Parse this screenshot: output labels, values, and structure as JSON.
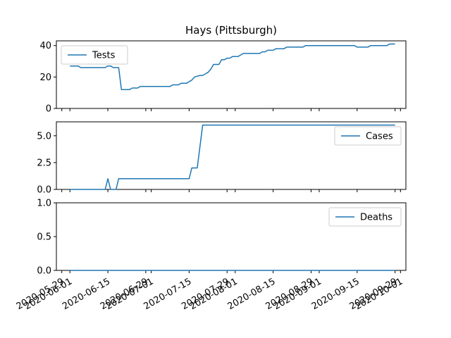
{
  "chart_data": {
    "type": "line",
    "title": "Hays (Pittsburgh)",
    "line_color": "#1f77b4",
    "x_ticks": [
      "2020-05-29",
      "2020-06-01",
      "2020-06-15",
      "2020-06-29",
      "2020-07-01",
      "2020-07-15",
      "2020-07-29",
      "2020-08-01",
      "2020-08-15",
      "2020-08-29",
      "2020-09-01",
      "2020-09-15",
      "2020-09-29",
      "2020-10-01"
    ],
    "x_range": [
      "2020-05-27",
      "2020-10-03"
    ],
    "panels": [
      {
        "series_name": "Tests",
        "legend_position": "top-left",
        "ylim": [
          0,
          43
        ],
        "y_ticks": [
          0,
          20,
          40
        ],
        "y_tick_labels": [
          "0",
          "20",
          "40"
        ],
        "points": [
          [
            "2020-06-01",
            27
          ],
          [
            "2020-06-04",
            27
          ],
          [
            "2020-06-05",
            26
          ],
          [
            "2020-06-14",
            26
          ],
          [
            "2020-06-15",
            27
          ],
          [
            "2020-06-16",
            27
          ],
          [
            "2020-06-17",
            26
          ],
          [
            "2020-06-19",
            26
          ],
          [
            "2020-06-20",
            12
          ],
          [
            "2020-06-23",
            12
          ],
          [
            "2020-06-24",
            13
          ],
          [
            "2020-06-26",
            13
          ],
          [
            "2020-06-27",
            14
          ],
          [
            "2020-07-08",
            14
          ],
          [
            "2020-07-09",
            15
          ],
          [
            "2020-07-11",
            15
          ],
          [
            "2020-07-12",
            16
          ],
          [
            "2020-07-14",
            16
          ],
          [
            "2020-07-15",
            17
          ],
          [
            "2020-07-16",
            18
          ],
          [
            "2020-07-17",
            20
          ],
          [
            "2020-07-19",
            21
          ],
          [
            "2020-07-20",
            21
          ],
          [
            "2020-07-21",
            22
          ],
          [
            "2020-07-22",
            23
          ],
          [
            "2020-07-23",
            25
          ],
          [
            "2020-07-24",
            28
          ],
          [
            "2020-07-26",
            28
          ],
          [
            "2020-07-27",
            31
          ],
          [
            "2020-07-28",
            31
          ],
          [
            "2020-07-29",
            32
          ],
          [
            "2020-07-30",
            32
          ],
          [
            "2020-07-31",
            33
          ],
          [
            "2020-08-02",
            33
          ],
          [
            "2020-08-03",
            34
          ],
          [
            "2020-08-04",
            35
          ],
          [
            "2020-08-10",
            35
          ],
          [
            "2020-08-11",
            36
          ],
          [
            "2020-08-12",
            36
          ],
          [
            "2020-08-13",
            37
          ],
          [
            "2020-08-15",
            37
          ],
          [
            "2020-08-16",
            38
          ],
          [
            "2020-08-19",
            38
          ],
          [
            "2020-08-20",
            39
          ],
          [
            "2020-08-26",
            39
          ],
          [
            "2020-08-27",
            40
          ],
          [
            "2020-09-14",
            40
          ],
          [
            "2020-09-15",
            39
          ],
          [
            "2020-09-19",
            39
          ],
          [
            "2020-09-20",
            40
          ],
          [
            "2020-09-26",
            40
          ],
          [
            "2020-09-27",
            41
          ],
          [
            "2020-09-29",
            41
          ]
        ]
      },
      {
        "series_name": "Cases",
        "legend_position": "top-right",
        "ylim": [
          0,
          6.3
        ],
        "y_ticks": [
          0,
          2.5,
          5
        ],
        "y_tick_labels": [
          "0.0",
          "2.5",
          "5.0"
        ],
        "points": [
          [
            "2020-06-01",
            0
          ],
          [
            "2020-06-14",
            0
          ],
          [
            "2020-06-15",
            1
          ],
          [
            "2020-06-16",
            0
          ],
          [
            "2020-06-18",
            0
          ],
          [
            "2020-06-19",
            1
          ],
          [
            "2020-07-15",
            1
          ],
          [
            "2020-07-16",
            2
          ],
          [
            "2020-07-18",
            2
          ],
          [
            "2020-07-20",
            6
          ],
          [
            "2020-09-29",
            6
          ]
        ]
      },
      {
        "series_name": "Deaths",
        "legend_position": "top-right",
        "ylim": [
          0,
          1
        ],
        "y_ticks": [
          0,
          0.5,
          1
        ],
        "y_tick_labels": [
          "0.0",
          "0.5",
          "1.0"
        ],
        "points": [
          [
            "2020-06-01",
            0
          ],
          [
            "2020-09-29",
            0
          ]
        ]
      }
    ]
  }
}
